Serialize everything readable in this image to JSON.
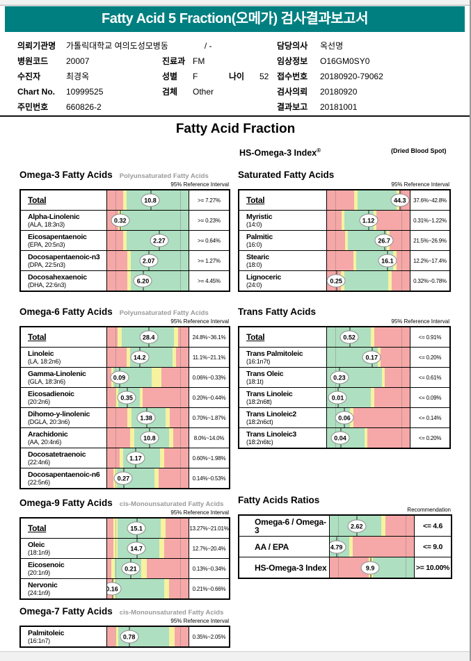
{
  "window": {
    "title_bar": "Fatty Acid 5 Fraction(오메가) 검사결과보고서"
  },
  "header": {
    "main_title": "Fatty Acid Fraction",
    "hs_index_label": "HS-Omega-3 Index",
    "reg_mark": "®",
    "dried_blood_spot": "(Dried Blood Spot)"
  },
  "colors": {
    "teal": "#007F80",
    "bar_red": "#F5A8A7",
    "bar_yellow": "#F6F2A0",
    "bar_green": "#AEDFC0"
  },
  "patient_info": {
    "columns": [
      {
        "rows": [
          {
            "label": "의뢰기관명",
            "value": "가톨릭대학교 여의도성모병동",
            "extra": "/ -"
          },
          {
            "label": "병원코드",
            "value": "20007"
          },
          {
            "label": "수진자",
            "value": "최경옥"
          },
          {
            "label": "Chart No.",
            "value": "10999525"
          },
          {
            "label": "주민번호",
            "value": "660826-2"
          }
        ]
      },
      {
        "rows": [
          {
            "label": "진료과",
            "value": "FM"
          },
          {
            "label": "성별",
            "value": "F",
            "label2": "나이",
            "value2": "52"
          },
          {
            "label": "검체",
            "value": "Other"
          }
        ]
      },
      {
        "rows": [
          {
            "label": "담당의사",
            "value": "옥선명"
          },
          {
            "label": "임상정보",
            "value": "O16GM0SY0"
          },
          {
            "label": "접수번호",
            "value": "20180920-79062"
          },
          {
            "label": "검사의뢰",
            "value": "20180920"
          },
          {
            "label": "결과보고",
            "value": "20181001"
          }
        ]
      }
    ]
  },
  "sections": [
    {
      "id": "omega3",
      "side": "left",
      "title": "Omega-3 Fatty Acids",
      "subtitle": "Polyunsaturated Fatty Acids",
      "ref_label": "95% Reference Interval",
      "rows": [
        {
          "name": "Total",
          "total": true,
          "value": "10.8",
          "ref": ">= 7.27%",
          "marker": 53,
          "segments": [
            [
              "red",
              20
            ],
            [
              "yellow",
              4
            ],
            [
              "green",
              76
            ]
          ]
        },
        {
          "name": "Alpha-Linolenic",
          "sub": "(ALA, 18:3n3)",
          "value": "0.32",
          "ref": ">= 0.23%",
          "marker": 16,
          "segments": [
            [
              "red",
              14
            ],
            [
              "yellow",
              4
            ],
            [
              "green",
              82
            ]
          ]
        },
        {
          "name": "Eicosapentaenoic",
          "sub": "(EPA, 20:5n3)",
          "value": "2.27",
          "ref": ">= 0.64%",
          "marker": 64,
          "segments": [
            [
              "red",
              20
            ],
            [
              "yellow",
              4
            ],
            [
              "green",
              76
            ]
          ]
        },
        {
          "name": "Docosapentaenoic-n3",
          "sub": "(DPA, 22:5n3)",
          "value": "2.07",
          "ref": ">= 1.27%",
          "marker": 51,
          "segments": [
            [
              "red",
              25
            ],
            [
              "yellow",
              4
            ],
            [
              "green",
              71
            ]
          ]
        },
        {
          "name": "Docosahexaenoic",
          "sub": "(DHA, 22:6n3)",
          "value": "6.20",
          "ref": ">= 4.45%",
          "marker": 44,
          "segments": [
            [
              "red",
              25
            ],
            [
              "yellow",
              4
            ],
            [
              "green",
              71
            ]
          ]
        }
      ]
    },
    {
      "id": "saturated",
      "side": "right",
      "title": "Saturated Fatty Acids",
      "subtitle": "",
      "ref_label": "95% Reference Interval",
      "rows": [
        {
          "name": "Total",
          "total": true,
          "value": "44.3",
          "ref": "37.6%~42.8%",
          "marker": 88,
          "segments": [
            [
              "red",
              33
            ],
            [
              "yellow",
              4
            ],
            [
              "green",
              47
            ],
            [
              "yellow",
              3
            ],
            [
              "red",
              13
            ]
          ]
        },
        {
          "name": "Myristic",
          "sub": "(14:0)",
          "value": "1.12",
          "ref": "0.31%~1.22%",
          "marker": 50,
          "segments": [
            [
              "red",
              18
            ],
            [
              "yellow",
              3
            ],
            [
              "green",
              35
            ],
            [
              "yellow",
              4
            ],
            [
              "red",
              40
            ]
          ]
        },
        {
          "name": "Palmitic",
          "sub": "(16:0)",
          "value": "26.7",
          "ref": "21.5%~26.9%",
          "marker": 69,
          "segments": [
            [
              "red",
              22
            ],
            [
              "yellow",
              3
            ],
            [
              "green",
              47
            ],
            [
              "yellow",
              4
            ],
            [
              "red",
              24
            ]
          ]
        },
        {
          "name": "Stearic",
          "sub": "(18:0)",
          "value": "16.1",
          "ref": "12.2%~17.4%",
          "marker": 73,
          "segments": [
            [
              "red",
              32
            ],
            [
              "yellow",
              3
            ],
            [
              "green",
              45
            ],
            [
              "yellow",
              4
            ],
            [
              "red",
              16
            ]
          ]
        },
        {
          "name": "Lignoceric",
          "sub": "(24:0)",
          "value": "0.25",
          "ref": "0.32%~0.78%",
          "marker": 11,
          "segments": [
            [
              "red",
              17
            ],
            [
              "yellow",
              4
            ],
            [
              "green",
              53
            ],
            [
              "yellow",
              4
            ],
            [
              "red",
              22
            ]
          ]
        }
      ]
    },
    {
      "id": "omega6",
      "side": "left",
      "title": "Omega-6 Fatty Acids",
      "subtitle": "Polyunsaturated Fatty Acids",
      "ref_label": "95% Reference Interval",
      "rows": [
        {
          "name": "Total",
          "total": true,
          "value": "28.4",
          "ref": "24.8%~36.1%",
          "marker": 51,
          "segments": [
            [
              "red",
              13
            ],
            [
              "yellow",
              5
            ],
            [
              "green",
              64
            ],
            [
              "yellow",
              5
            ],
            [
              "red",
              13
            ]
          ]
        },
        {
          "name": "Linoleic",
          "sub": "(LA, 18:2n6)",
          "value": "14.2",
          "ref": "11.1%~21.1%",
          "marker": 40,
          "segments": [
            [
              "red",
              24
            ],
            [
              "yellow",
              4
            ],
            [
              "green",
              52
            ],
            [
              "yellow",
              5
            ],
            [
              "red",
              15
            ]
          ]
        },
        {
          "name": "Gamma-Linolenic",
          "sub": "(GLA, 18:3n6)",
          "value": "0.09",
          "ref": "0.06%~0.33%",
          "marker": 15,
          "segments": [
            [
              "red",
              5
            ],
            [
              "yellow",
              3
            ],
            [
              "green",
              47
            ],
            [
              "yellow",
              12
            ],
            [
              "red",
              33
            ]
          ]
        },
        {
          "name": "Eicosadienoic",
          "sub": "(20:2n6)",
          "value": "0.35",
          "ref": "0.20%~0.44%",
          "marker": 24,
          "segments": [
            [
              "red",
              10
            ],
            [
              "yellow",
              4
            ],
            [
              "green",
              26
            ],
            [
              "yellow",
              4
            ],
            [
              "red",
              56
            ]
          ]
        },
        {
          "name": "Dihomo-y-linolenic",
          "sub": "(DGLA, 20:3n6)",
          "value": "1.38",
          "ref": "0.70%~1.87%",
          "marker": 48,
          "segments": [
            [
              "red",
              25
            ],
            [
              "yellow",
              5
            ],
            [
              "green",
              42
            ],
            [
              "yellow",
              5
            ],
            [
              "red",
              23
            ]
          ]
        },
        {
          "name": "Arachidonic",
          "sub": "(AA, 20:4n6)",
          "value": "10.8",
          "ref": "8.0%~14.0%",
          "marker": 52,
          "segments": [
            [
              "red",
              28
            ],
            [
              "yellow",
              5
            ],
            [
              "green",
              43
            ],
            [
              "yellow",
              5
            ],
            [
              "red",
              19
            ]
          ]
        },
        {
          "name": "Docosatetraenoic",
          "sub": "(22:4n6)",
          "value": "1.17",
          "ref": "0.60%~1.98%",
          "marker": 35,
          "segments": [
            [
              "red",
              15
            ],
            [
              "yellow",
              5
            ],
            [
              "green",
              45
            ],
            [
              "yellow",
              5
            ],
            [
              "red",
              30
            ]
          ]
        },
        {
          "name": "Docosapentaenoic-n6",
          "sub": "(22:5n6)",
          "value": "0.27",
          "ref": "0.14%~0.53%",
          "marker": 20,
          "segments": [
            [
              "red",
              8
            ],
            [
              "yellow",
              4
            ],
            [
              "green",
              46
            ],
            [
              "yellow",
              5
            ],
            [
              "red",
              37
            ]
          ]
        }
      ]
    },
    {
      "id": "trans",
      "side": "right",
      "title": "Trans Fatty Acids",
      "subtitle": "",
      "ref_label": "95% Reference Interval",
      "rows": [
        {
          "name": "Total",
          "total": true,
          "value": "0.52",
          "ref": "<= 0.91%",
          "marker": 27,
          "segments": [
            [
              "green",
              53
            ],
            [
              "yellow",
              4
            ],
            [
              "red",
              43
            ]
          ]
        },
        {
          "name": "Trans Palmitoleic",
          "sub": "(16:1n7t)",
          "value": "0.17",
          "ref": "<= 0.20%",
          "marker": 54,
          "segments": [
            [
              "green",
              61
            ],
            [
              "yellow",
              4
            ],
            [
              "red",
              35
            ]
          ]
        },
        {
          "name": "Trans Oleic",
          "sub": "(18:1t)",
          "value": "0.23",
          "ref": "<= 0.61%",
          "marker": 15,
          "segments": [
            [
              "green",
              66
            ],
            [
              "yellow",
              4
            ],
            [
              "red",
              30
            ]
          ]
        },
        {
          "name": "Trans Linoleic",
          "sub": "(18:2n6tt)",
          "value": "0.01",
          "ref": "<= 0.09%",
          "marker": 13,
          "segments": [
            [
              "green",
              53
            ],
            [
              "yellow",
              4
            ],
            [
              "red",
              43
            ]
          ]
        },
        {
          "name": "Trans Linoleic2",
          "sub": "(18:2n6ct)",
          "value": "0.06",
          "ref": "<= 0.14%",
          "marker": 21,
          "segments": [
            [
              "green",
              28
            ],
            [
              "yellow",
              4
            ],
            [
              "red",
              68
            ]
          ]
        },
        {
          "name": "Trans Linoleic3",
          "sub": "(18:2n6tc)",
          "value": "0.04",
          "ref": "<= 0.20%",
          "marker": 16,
          "segments": [
            [
              "green",
              45
            ],
            [
              "yellow",
              4
            ],
            [
              "red",
              51
            ]
          ]
        }
      ]
    },
    {
      "id": "omega9",
      "side": "left",
      "title": "Omega-9 Fatty Acids",
      "subtitle": "cis-Monounsaturated Fatty Acids",
      "ref_label": "95% Reference Interval",
      "rows": [
        {
          "name": "Total",
          "total": true,
          "value": "15.1",
          "ref": "13.27%~21.01%",
          "marker": 36,
          "segments": [
            [
              "red",
              8
            ],
            [
              "yellow",
              5
            ],
            [
              "green",
              53
            ],
            [
              "yellow",
              6
            ],
            [
              "red",
              28
            ]
          ]
        },
        {
          "name": "Oleic",
          "sub": "(18:1n9)",
          "value": "14.7",
          "ref": "12.7%~20.4%",
          "marker": 36,
          "segments": [
            [
              "red",
              8
            ],
            [
              "yellow",
              5
            ],
            [
              "green",
              51
            ],
            [
              "yellow",
              6
            ],
            [
              "red",
              30
            ]
          ]
        },
        {
          "name": "Eicosenoic",
          "sub": "(20:1n9)",
          "value": "0.21",
          "ref": "0.13%~0.34%",
          "marker": 29,
          "segments": [
            [
              "red",
              5
            ],
            [
              "yellow",
              4
            ],
            [
              "green",
              33
            ],
            [
              "yellow",
              7
            ],
            [
              "red",
              51
            ]
          ]
        },
        {
          "name": "Nervonic",
          "sub": "(24:1n9)",
          "value": "0.16",
          "ref": "0.21%~0.66%",
          "marker": 6,
          "segments": [
            [
              "red",
              6
            ],
            [
              "yellow",
              4
            ],
            [
              "green",
              60
            ],
            [
              "yellow",
              6
            ],
            [
              "red",
              24
            ]
          ]
        }
      ]
    },
    {
      "id": "ratios",
      "side": "right",
      "big": true,
      "title": "Fatty Acids Ratios",
      "subtitle": "",
      "ref_label": "Recommendation",
      "rows": [
        {
          "name": "Omega-6 / Omega-3",
          "value": "2.62",
          "ref": "<= 4.6",
          "marker": 32,
          "segments": [
            [
              "green",
              61
            ],
            [
              "yellow",
              5
            ],
            [
              "red",
              34
            ]
          ]
        },
        {
          "name": "AA / EPA",
          "value": "4.79",
          "ref": "<= 9.0",
          "marker": 8,
          "segments": [
            [
              "green",
              23
            ],
            [
              "yellow",
              4
            ],
            [
              "red",
              73
            ]
          ]
        },
        {
          "name": "HS-Omega-3 Index",
          "value": "9.9",
          "ref": ">= 10.00%",
          "marker": 48,
          "segments": [
            [
              "red",
              46
            ],
            [
              "yellow",
              5
            ],
            [
              "green",
              49
            ]
          ]
        }
      ]
    },
    {
      "id": "omega7",
      "side": "left",
      "title": "Omega-7 Fatty Acids",
      "subtitle": "cis-Monounsaturated Fatty Acids",
      "ref_label": "95% Reference Interval",
      "rows": [
        {
          "name": "Palmitoleic",
          "sub": "(16:1n7)",
          "value": "0.78",
          "ref": "0.35%~2.05%",
          "marker": 27,
          "segments": [
            [
              "red",
              10
            ],
            [
              "yellow",
              4
            ],
            [
              "green",
              62
            ],
            [
              "yellow",
              7
            ],
            [
              "red",
              17
            ]
          ]
        }
      ]
    }
  ]
}
